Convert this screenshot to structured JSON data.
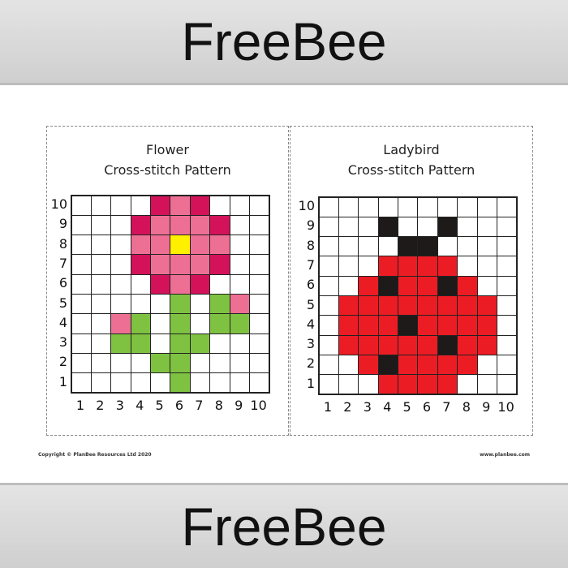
{
  "banner_text": "FreeBee",
  "colors": {
    "W": "#ffffff",
    "D": "#d3125a",
    "P": "#ee6f94",
    "Y": "#fff000",
    "G": "#7fc241",
    "K": "#1e1a1a",
    "R": "#ec1c24"
  },
  "patterns": [
    {
      "title1": "Flower",
      "title2": "Cross-stitch Pattern",
      "rows": [
        "....DPD...",
        "...DPPPD..",
        "...PPYPP..",
        "...DPPPD..",
        "....DPD...",
        ".....G.GP.",
        "..PG.G.GG.",
        "..GG.GG...",
        "....GG....",
        ".....G...."
      ]
    },
    {
      "title1": "Ladybird",
      "title2": "Cross-stitch Pattern",
      "rows": [
        "..........",
        "...K..K...",
        "....KK....",
        "...RRRR...",
        "..RKRRKR..",
        ".RRRRRRRR.",
        ".RRRKRRRR.",
        ".RRRRRKRR.",
        "..RKRRRR..",
        "...RRRR..."
      ]
    }
  ],
  "axis_labels": [
    "1",
    "2",
    "3",
    "4",
    "5",
    "6",
    "7",
    "8",
    "9",
    "10"
  ],
  "footer": {
    "copyright": "Copyright © PlanBee Resources Ltd 2020",
    "website": "www.planbee.com"
  }
}
